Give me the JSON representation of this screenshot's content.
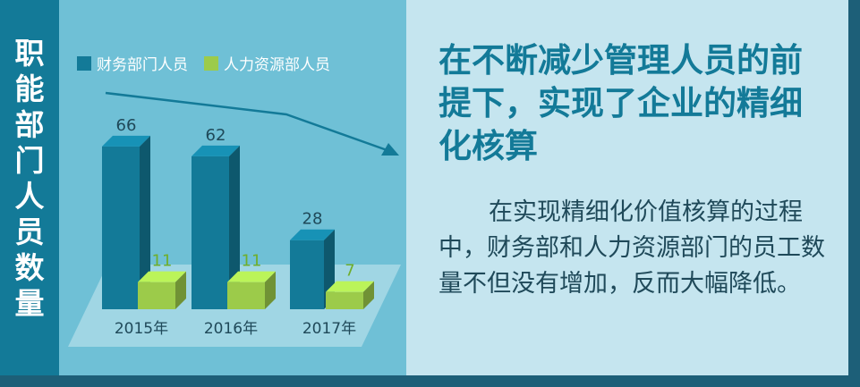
{
  "sidebar": {
    "title_chars": [
      "职",
      "能",
      "部",
      "门",
      "人",
      "员",
      "数",
      "量"
    ]
  },
  "headline": "在不断减少管理人员的前提下，实现了企业的精细化核算",
  "body": "在实现精细化价值核算的过程中，财务部和人力资源部门的员工数量不但没有增加，反而大幅降低。",
  "colors": {
    "finance": "#137a98",
    "hr": "#9ccb4a",
    "accent": "#137a98"
  },
  "chart_data": {
    "type": "bar",
    "categories": [
      "2015年",
      "2016年",
      "2017年"
    ],
    "series": [
      {
        "name": "财务部门人员",
        "values": [
          66,
          62,
          28
        ]
      },
      {
        "name": "人力资源部人员",
        "values": [
          11,
          11,
          7
        ]
      }
    ],
    "ylim": [
      0,
      70
    ],
    "legend": "top-left",
    "grid": false
  }
}
